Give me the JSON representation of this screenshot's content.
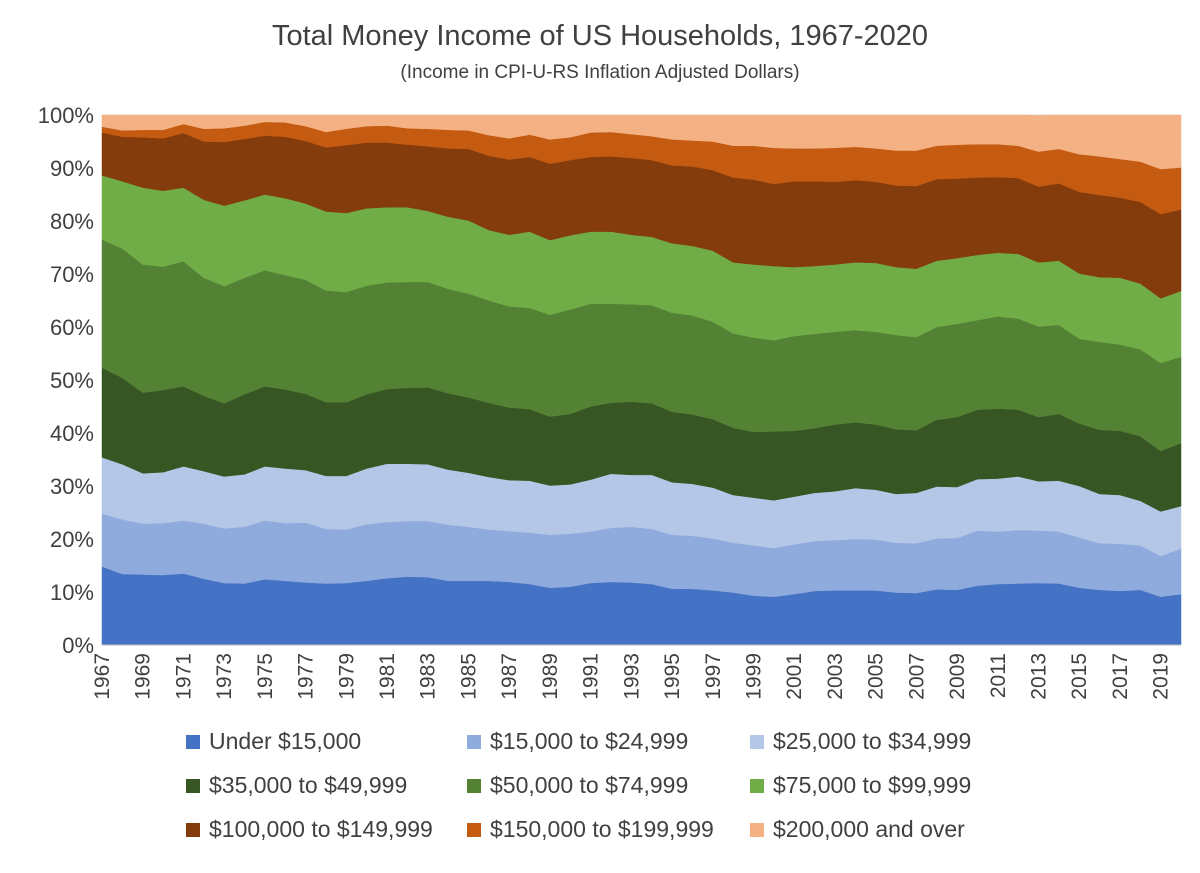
{
  "chart_data": {
    "type": "area",
    "stacked": "percent",
    "title": "Total Money Income of US Households, 1967-2020",
    "subtitle": "(Income in CPI-U-RS Inflation Adjusted Dollars)",
    "xlabel": "",
    "ylabel": "",
    "ylim": [
      0,
      100
    ],
    "y_ticks": [
      "0%",
      "10%",
      "20%",
      "30%",
      "40%",
      "50%",
      "60%",
      "70%",
      "80%",
      "90%",
      "100%"
    ],
    "x_tick_labels": [
      "1967",
      "1969",
      "1971",
      "1973",
      "1975",
      "1977",
      "1979",
      "1981",
      "1983",
      "1985",
      "1987",
      "1989",
      "1991",
      "1993",
      "1995",
      "1997",
      "1999",
      "2001",
      "2003",
      "2005",
      "2007",
      "2009",
      "2011",
      "2013",
      "2015",
      "2017",
      "2019"
    ],
    "legend_position": "bottom",
    "x": [
      1967,
      1968,
      1969,
      1970,
      1971,
      1972,
      1973,
      1974,
      1975,
      1976,
      1977,
      1978,
      1979,
      1980,
      1981,
      1982,
      1983,
      1984,
      1985,
      1986,
      1987,
      1988,
      1989,
      1990,
      1991,
      1992,
      1993,
      1994,
      1995,
      1996,
      1997,
      1998,
      1999,
      2000,
      2001,
      2002,
      2003,
      2004,
      2005,
      2006,
      2007,
      2008,
      2009,
      2010,
      2011,
      2012,
      2013,
      2014,
      2015,
      2016,
      2017,
      2018,
      2019,
      2020
    ],
    "series": [
      {
        "name": "Under $15,000",
        "color": "#4472C4",
        "values": [
          14.8,
          13.4,
          13.3,
          13.2,
          13.5,
          12.5,
          11.7,
          11.6,
          12.4,
          12.1,
          11.8,
          11.6,
          11.7,
          12.1,
          12.6,
          12.9,
          12.8,
          12.1,
          12.1,
          12.1,
          11.9,
          11.5,
          10.8,
          11.0,
          11.7,
          11.9,
          11.8,
          11.5,
          10.6,
          10.6,
          10.3,
          9.9,
          9.3,
          9.1,
          9.6,
          10.2,
          10.3,
          10.3,
          10.3,
          9.9,
          9.8,
          10.5,
          10.4,
          11.2,
          11.5,
          11.6,
          11.7,
          11.6,
          10.8,
          10.4,
          10.2,
          10.4,
          9.1,
          9.6
        ]
      },
      {
        "name": "$15,000 to $24,999",
        "color": "#8FAADC",
        "values": [
          10.0,
          10.3,
          9.6,
          9.8,
          10.0,
          10.4,
          10.3,
          10.7,
          11.1,
          10.9,
          11.3,
          10.3,
          10.1,
          10.7,
          10.6,
          10.5,
          10.6,
          10.6,
          10.2,
          9.7,
          9.6,
          9.7,
          10.0,
          10.0,
          9.7,
          10.2,
          10.5,
          10.4,
          10.2,
          10.0,
          9.8,
          9.4,
          9.5,
          9.2,
          9.4,
          9.4,
          9.5,
          9.7,
          9.6,
          9.4,
          9.4,
          9.6,
          9.8,
          10.4,
          9.9,
          10.1,
          9.9,
          9.8,
          9.5,
          8.8,
          8.9,
          8.4,
          7.7,
          8.6
        ]
      },
      {
        "name": "$25,000 to $34,999",
        "color": "#B4C7E7",
        "values": [
          10.6,
          10.4,
          9.5,
          9.6,
          10.2,
          9.9,
          9.8,
          9.9,
          10.2,
          10.3,
          9.9,
          10.0,
          10.1,
          10.5,
          11.0,
          10.8,
          10.7,
          10.4,
          10.2,
          9.9,
          9.6,
          9.8,
          9.3,
          9.3,
          9.8,
          10.2,
          9.8,
          10.2,
          9.9,
          9.8,
          9.6,
          9.0,
          9.0,
          9.0,
          9.0,
          9.1,
          9.2,
          9.6,
          9.4,
          9.2,
          9.5,
          9.8,
          9.6,
          9.7,
          10.0,
          10.1,
          9.3,
          9.6,
          9.7,
          9.3,
          9.2,
          8.4,
          8.4,
          8.0
        ]
      },
      {
        "name": "$35,000 to $49,999",
        "color": "#375623",
        "values": [
          16.9,
          16.3,
          15.2,
          15.5,
          15.1,
          14.2,
          13.8,
          15.1,
          15.1,
          14.9,
          14.4,
          13.9,
          13.9,
          14.0,
          14.1,
          14.3,
          14.5,
          14.4,
          14.2,
          14.0,
          13.7,
          13.5,
          13.0,
          13.3,
          13.8,
          13.4,
          13.8,
          13.5,
          13.3,
          13.1,
          12.9,
          12.7,
          12.4,
          13.0,
          12.4,
          12.2,
          12.6,
          12.4,
          12.3,
          12.2,
          11.8,
          12.6,
          13.2,
          13.1,
          13.2,
          12.6,
          12.1,
          12.6,
          11.8,
          12.1,
          12.1,
          12.2,
          11.4,
          11.9
        ]
      },
      {
        "name": "$50,000 to $74,999",
        "color": "#548235",
        "values": [
          24.2,
          24.4,
          24.2,
          23.3,
          23.6,
          22.3,
          22.1,
          22.0,
          21.9,
          21.6,
          21.5,
          21.1,
          20.8,
          20.5,
          20.1,
          20.0,
          19.9,
          19.7,
          19.6,
          19.3,
          19.1,
          19.1,
          19.2,
          19.7,
          19.4,
          18.7,
          18.4,
          18.5,
          18.7,
          18.7,
          18.4,
          17.8,
          17.8,
          17.2,
          17.9,
          17.8,
          17.5,
          17.4,
          17.5,
          17.8,
          17.6,
          17.5,
          17.6,
          16.9,
          17.4,
          17.2,
          17.1,
          16.8,
          16.0,
          16.6,
          16.3,
          16.4,
          16.6,
          16.3
        ]
      },
      {
        "name": "$75,000 to $99,999",
        "color": "#70AD47",
        "values": [
          12.1,
          12.7,
          14.5,
          14.3,
          13.9,
          14.7,
          15.2,
          14.6,
          14.3,
          14.5,
          14.4,
          14.9,
          14.9,
          14.6,
          14.2,
          14.1,
          13.4,
          13.6,
          13.8,
          13.3,
          13.5,
          14.4,
          14.1,
          14.0,
          13.6,
          13.6,
          13.1,
          12.9,
          13.1,
          13.1,
          13.4,
          13.4,
          13.8,
          14.0,
          13.0,
          12.8,
          12.7,
          12.8,
          13.0,
          12.8,
          12.9,
          12.5,
          12.4,
          12.3,
          12.0,
          12.2,
          12.1,
          12.1,
          12.3,
          12.2,
          12.6,
          12.4,
          12.2,
          12.4
        ]
      },
      {
        "name": "$100,000 to $149,999",
        "color": "#843C0C",
        "values": [
          8.1,
          8.4,
          9.5,
          9.9,
          10.3,
          11.0,
          12.0,
          11.6,
          11.1,
          11.6,
          11.8,
          12.1,
          12.8,
          12.4,
          12.2,
          11.8,
          12.2,
          12.9,
          13.5,
          14.0,
          14.2,
          14.1,
          14.4,
          14.2,
          14.1,
          14.2,
          14.5,
          14.5,
          14.7,
          15.0,
          15.2,
          16.0,
          16.0,
          15.5,
          16.2,
          16.0,
          15.6,
          15.5,
          15.3,
          15.4,
          15.6,
          15.4,
          15.0,
          14.6,
          14.3,
          14.3,
          14.3,
          14.6,
          15.4,
          15.5,
          15.1,
          15.4,
          15.9,
          15.4
        ]
      },
      {
        "name": "$150,000 to $199,999",
        "color": "#C55A11",
        "values": [
          1.1,
          1.2,
          1.4,
          1.6,
          1.7,
          2.4,
          2.6,
          2.5,
          2.6,
          2.7,
          2.8,
          2.9,
          3.1,
          3.1,
          3.2,
          3.1,
          3.3,
          3.5,
          3.5,
          3.9,
          4.0,
          4.2,
          4.6,
          4.3,
          4.6,
          4.6,
          4.5,
          4.5,
          4.9,
          4.9,
          5.4,
          6.0,
          6.4,
          6.8,
          6.2,
          6.2,
          6.4,
          6.3,
          6.3,
          6.6,
          6.7,
          6.3,
          6.4,
          6.3,
          6.2,
          6.1,
          6.6,
          6.5,
          7.1,
          7.3,
          7.3,
          7.6,
          8.5,
          7.9
        ]
      },
      {
        "name": "$200,000 and over",
        "color": "#F4B183",
        "values": [
          2.2,
          2.9,
          2.8,
          2.8,
          1.7,
          2.6,
          2.5,
          2.0,
          1.3,
          1.4,
          2.1,
          3.2,
          2.6,
          2.1,
          2.0,
          2.5,
          2.6,
          2.8,
          2.9,
          3.8,
          4.4,
          3.7,
          4.6,
          4.2,
          3.3,
          3.2,
          3.6,
          4.0,
          4.6,
          4.8,
          5.0,
          5.8,
          5.8,
          6.2,
          6.3,
          6.3,
          6.2,
          6.0,
          6.3,
          6.7,
          6.7,
          5.8,
          5.6,
          5.5,
          5.5,
          5.8,
          6.8,
          6.8,
          7.4,
          7.8,
          8.3,
          8.8,
          10.2,
          10.1
        ]
      }
    ]
  }
}
